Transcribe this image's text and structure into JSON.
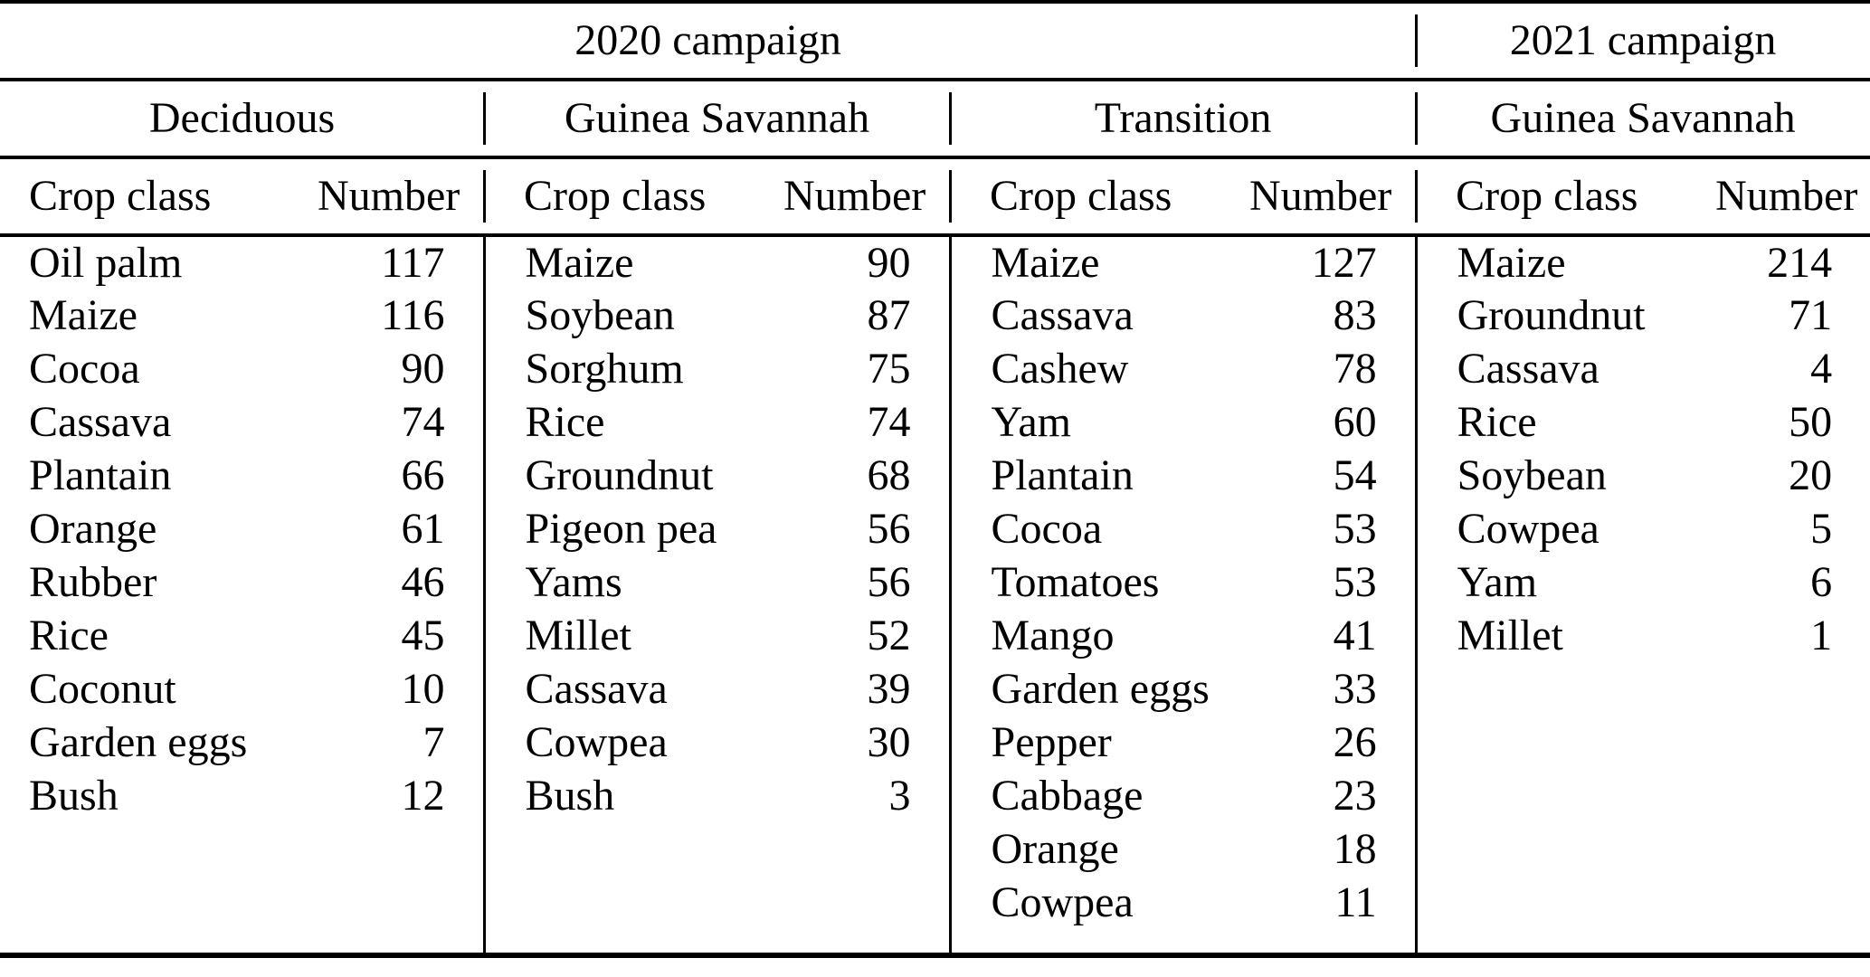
{
  "chart_data": {
    "type": "table",
    "col_headers": {
      "crop": "Crop class",
      "number": "Number"
    },
    "campaigns": [
      {
        "label": "2020 campaign"
      },
      {
        "label": "2021 campaign"
      }
    ],
    "groups": [
      {
        "campaign": "2020 campaign",
        "region": "Deciduous",
        "rows": [
          [
            "Oil palm",
            117
          ],
          [
            "Maize",
            116
          ],
          [
            "Cocoa",
            90
          ],
          [
            "Cassava",
            74
          ],
          [
            "Plantain",
            66
          ],
          [
            "Orange",
            61
          ],
          [
            "Rubber",
            46
          ],
          [
            "Rice",
            45
          ],
          [
            "Coconut",
            10
          ],
          [
            "Garden eggs",
            7
          ],
          [
            "Bush",
            12
          ]
        ]
      },
      {
        "campaign": "2020 campaign",
        "region": "Guinea Savannah",
        "rows": [
          [
            "Maize",
            90
          ],
          [
            "Soybean",
            87
          ],
          [
            "Sorghum",
            75
          ],
          [
            "Rice",
            74
          ],
          [
            "Groundnut",
            68
          ],
          [
            "Pigeon pea",
            56
          ],
          [
            "Yams",
            56
          ],
          [
            "Millet",
            52
          ],
          [
            "Cassava",
            39
          ],
          [
            "Cowpea",
            30
          ],
          [
            "Bush",
            3
          ]
        ]
      },
      {
        "campaign": "2020 campaign",
        "region": "Transition",
        "rows": [
          [
            "Maize",
            127
          ],
          [
            "Cassava",
            83
          ],
          [
            "Cashew",
            78
          ],
          [
            "Yam",
            60
          ],
          [
            "Plantain",
            54
          ],
          [
            "Cocoa",
            53
          ],
          [
            "Tomatoes",
            53
          ],
          [
            "Mango",
            41
          ],
          [
            "Garden eggs",
            33
          ],
          [
            "Pepper",
            26
          ],
          [
            "Cabbage",
            23
          ],
          [
            "Orange",
            18
          ],
          [
            "Cowpea",
            11
          ]
        ]
      },
      {
        "campaign": "2021 campaign",
        "region": "Guinea Savannah",
        "rows": [
          [
            "Maize",
            214
          ],
          [
            "Groundnut",
            71
          ],
          [
            "Cassava",
            4
          ],
          [
            "Rice",
            50
          ],
          [
            "Soybean",
            20
          ],
          [
            "Cowpea",
            5
          ],
          [
            "Yam",
            6
          ],
          [
            "Millet",
            1
          ]
        ]
      }
    ],
    "colors": {
      "text": "#000000",
      "background": "#ffffff",
      "rule": "#000000"
    }
  }
}
